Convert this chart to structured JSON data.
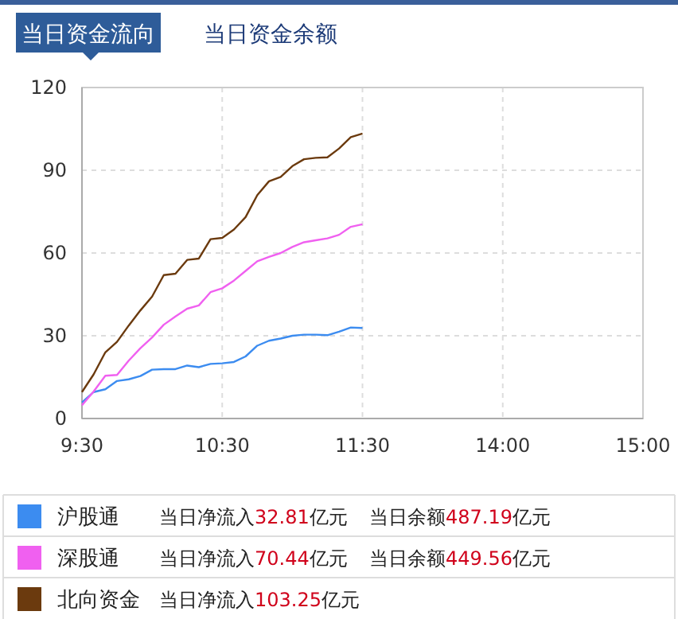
{
  "chart_data": {
    "type": "line",
    "title": "当日资金流向",
    "subtitle": "当日资金余额",
    "categories": [
      "9:30",
      null,
      null,
      null,
      null,
      null,
      null,
      null,
      null,
      null,
      null,
      null,
      "10:30",
      null,
      null,
      null,
      null,
      null,
      null,
      null,
      null,
      null,
      null,
      null,
      "11:30",
      null,
      null,
      null,
      null,
      null,
      null,
      null,
      null,
      null,
      null,
      null,
      "14:00",
      null,
      null,
      null,
      null,
      null,
      null,
      null,
      null,
      null,
      null,
      null,
      "15:00"
    ],
    "ylim": [
      0,
      120
    ],
    "yticks": [
      0,
      30,
      60,
      90,
      120
    ],
    "grid": true,
    "legend": "bottom",
    "marker": "none",
    "line_style": "solid",
    "series": [
      {
        "name": "沪股通",
        "color": "#3c8cf0",
        "values": [
          5.8,
          9.6,
          10.6,
          13.6,
          14.2,
          15.4,
          17.7,
          17.9,
          17.9,
          19.2,
          18.6,
          19.8,
          20,
          20.5,
          22.5,
          26.4,
          28.2,
          29,
          30,
          30.4,
          30.4,
          30.2,
          31.5,
          33,
          32.8,
          null,
          null,
          null,
          null,
          null,
          null,
          null,
          null,
          null,
          null,
          null,
          null,
          null,
          null,
          null,
          null,
          null,
          null,
          null,
          null,
          null,
          null,
          null,
          null
        ]
      },
      {
        "name": "深股通",
        "color": "#f060f0",
        "values": [
          4.8,
          9.8,
          15.5,
          15.8,
          21,
          25.5,
          29.4,
          34,
          37,
          39.8,
          41,
          45.8,
          47.2,
          50,
          53.5,
          57,
          58.6,
          60,
          62.2,
          63.9,
          64.6,
          65.3,
          66.6,
          69.5,
          70.4,
          null,
          null,
          null,
          null,
          null,
          null,
          null,
          null,
          null,
          null,
          null,
          null,
          null,
          null,
          null,
          null,
          null,
          null,
          null,
          null,
          null,
          null,
          null,
          null
        ]
      },
      {
        "name": "北向资金",
        "color": "#6b3a0e",
        "values": [
          9.6,
          16,
          24,
          27.8,
          33.7,
          39.2,
          44.2,
          52,
          52.5,
          57.5,
          58,
          65,
          65.5,
          68.5,
          73,
          81,
          86,
          87.6,
          91.5,
          94,
          94.5,
          94.7,
          97.9,
          102,
          103.3,
          null,
          null,
          null,
          null,
          null,
          null,
          null,
          null,
          null,
          null,
          null,
          null,
          null,
          null,
          null,
          null,
          null,
          null,
          null,
          null,
          null,
          null,
          null,
          null
        ]
      }
    ],
    "annotations": [
      "当日净流入32.81亿元",
      "当日余额487.19亿元",
      "当日净流入70.44亿元",
      "当日余额449.56亿元",
      "当日净流入103.25亿元"
    ]
  }
}
